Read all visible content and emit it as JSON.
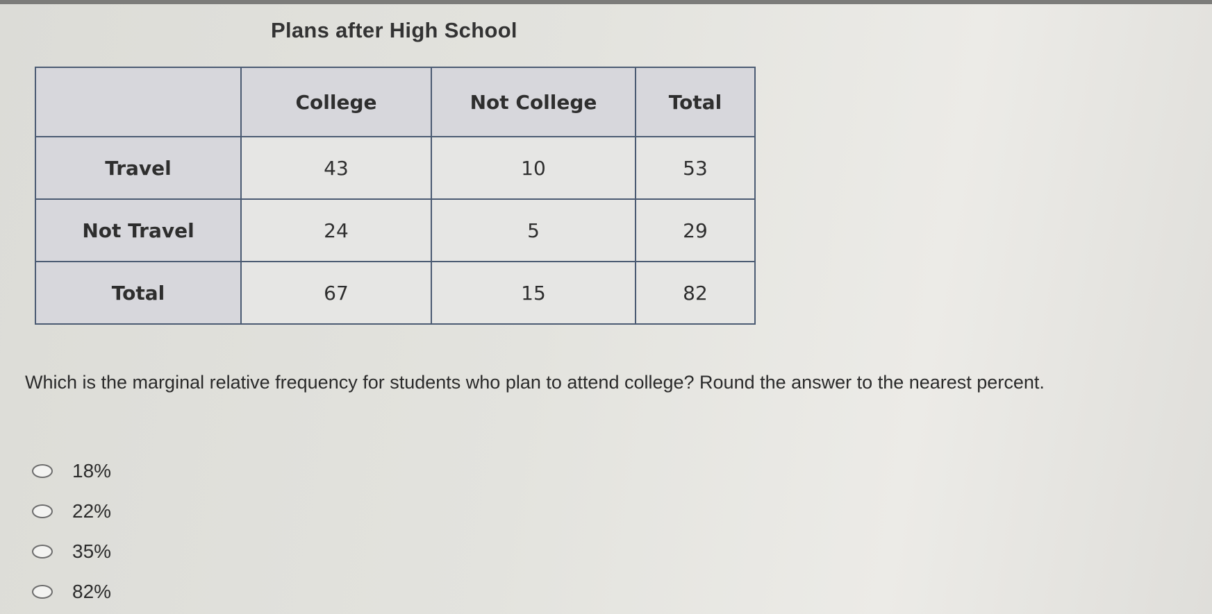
{
  "table": {
    "title": "Plans after High School",
    "headers": [
      "",
      "College",
      "Not College",
      "Total"
    ],
    "rows": [
      {
        "label": "Travel",
        "cells": [
          "43",
          "10",
          "53"
        ]
      },
      {
        "label": "Not Travel",
        "cells": [
          "24",
          "5",
          "29"
        ]
      },
      {
        "label": "Total",
        "cells": [
          "67",
          "15",
          "82"
        ]
      }
    ]
  },
  "question": {
    "text": "Which is the marginal relative frequency for students who plan to attend college? Round the answer to the nearest percent."
  },
  "options": [
    {
      "label": "18%"
    },
    {
      "label": "22%"
    },
    {
      "label": "35%"
    },
    {
      "label": "82%"
    }
  ],
  "colors": {
    "header_bg": "#d7d7dc",
    "cell_bg": "#e6e6e4",
    "border": "#4a5a72"
  }
}
